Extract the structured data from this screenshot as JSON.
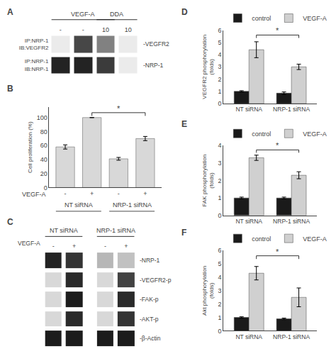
{
  "chart_data": [
    {
      "type": "blot",
      "title": "A",
      "categories": [
        "-",
        "-",
        "10",
        "10"
      ],
      "zlim": [
        0,
        1
      ],
      "series": [
        {
          "name": "-VEGFR2",
          "labels": [
            "IP:NRP-1",
            "IB:VEGFR2"
          ],
          "values": [
            0.0,
            0.7,
            0.45,
            0.0
          ]
        },
        {
          "name": "-NRP-1",
          "labels": [
            "IP:NRP-1",
            "IB:NRP-1"
          ],
          "values": [
            0.85,
            0.85,
            0.75,
            0.0
          ]
        }
      ],
      "annotations": [
        {
          "text": "VEGF-A",
          "span": [
            0,
            2
          ]
        },
        {
          "text": "DDA",
          "span": [
            2,
            3
          ]
        }
      ]
    },
    {
      "type": "bar",
      "title": "B",
      "categories": [
        "-",
        "+",
        "-",
        "+"
      ],
      "xlabel": "VEGF-A",
      "ylabel": "Cell proliferation (%)",
      "values": [
        58,
        100,
        41,
        70
      ],
      "errors": [
        3,
        0,
        2,
        3
      ],
      "color": "#d8d8d8",
      "ylim": [
        0,
        115
      ],
      "yticks": [
        0,
        20,
        40,
        60,
        80,
        100
      ],
      "annotations": [
        {
          "text": "NT siRNA",
          "span": [
            0,
            1
          ]
        },
        {
          "text": "NRP-1 siRNA",
          "span": [
            2,
            3
          ]
        },
        {
          "text": "*",
          "span": [
            1,
            3
          ],
          "y": 107
        }
      ]
    },
    {
      "type": "blot",
      "title": "C",
      "categories": [
        "-",
        "+",
        "-",
        "+"
      ],
      "xlabel": "VEGF-A",
      "zlim": [
        0,
        1
      ],
      "series": [
        {
          "name": "-NRP-1",
          "values": [
            0.85,
            0.78,
            0.22,
            0.18
          ]
        },
        {
          "name": "-VEGFR2-p",
          "values": [
            0.08,
            0.82,
            0.08,
            0.72
          ]
        },
        {
          "name": "-FAK-p",
          "values": [
            0.08,
            0.88,
            0.08,
            0.82
          ]
        },
        {
          "name": "-AKT-p",
          "values": [
            0.08,
            0.82,
            0.08,
            0.78
          ]
        },
        {
          "name": "-β-Actin",
          "values": [
            0.88,
            0.88,
            0.88,
            0.88
          ]
        }
      ],
      "annotations": [
        {
          "text": "NT siRNA",
          "span": [
            0,
            1
          ]
        },
        {
          "text": "NRP-1 siRNA",
          "span": [
            2,
            3
          ]
        }
      ]
    },
    {
      "type": "bar",
      "title": "D",
      "categories": [
        "NT siRNA",
        "NRP-1 siRNA"
      ],
      "ylabel": "VEGFR2 phosphorylation\n(folds)",
      "ylim": [
        0,
        6
      ],
      "yticks": [
        0,
        1,
        2,
        3,
        4,
        5,
        6
      ],
      "legend": "upper left",
      "series": [
        {
          "name": "control",
          "color": "#1a1a1a",
          "values": [
            1.0,
            0.85
          ],
          "errors": [
            0.05,
            0.1
          ]
        },
        {
          "name": "VEGF-A",
          "color": "#d0d0d0",
          "values": [
            4.4,
            3.0
          ],
          "errors": [
            0.65,
            0.22
          ]
        }
      ],
      "annotations": [
        {
          "text": "*",
          "series": 1,
          "span": [
            0,
            1
          ],
          "y": 5.6
        }
      ]
    },
    {
      "type": "bar",
      "title": "E",
      "categories": [
        "NT siRNA",
        "NRP-1 siRNA"
      ],
      "ylabel": "FAK phosphorylation\n(folds)",
      "ylim": [
        0,
        4
      ],
      "yticks": [
        0,
        1,
        2,
        3,
        4
      ],
      "legend": "upper left",
      "series": [
        {
          "name": "control",
          "color": "#1a1a1a",
          "values": [
            1.0,
            1.0
          ],
          "errors": [
            0.05,
            0.05
          ]
        },
        {
          "name": "VEGF-A",
          "color": "#d0d0d0",
          "values": [
            3.3,
            2.3
          ],
          "errors": [
            0.15,
            0.2
          ]
        }
      ],
      "annotations": [
        {
          "text": "*",
          "series": 1,
          "span": [
            0,
            1
          ],
          "y": 3.75
        }
      ]
    },
    {
      "type": "bar",
      "title": "F",
      "categories": [
        "NT siRNA",
        "NRP-1 siRNA"
      ],
      "ylabel": "Akt phosphorylation\n(folds)",
      "ylim": [
        0,
        6
      ],
      "yticks": [
        0,
        1,
        2,
        3,
        4,
        5,
        6
      ],
      "legend": "upper left",
      "series": [
        {
          "name": "control",
          "color": "#1a1a1a",
          "values": [
            1.0,
            0.9
          ],
          "errors": [
            0.05,
            0.05
          ]
        },
        {
          "name": "VEGF-A",
          "color": "#d0d0d0",
          "values": [
            4.3,
            2.5
          ],
          "errors": [
            0.5,
            0.7
          ]
        }
      ],
      "annotations": [
        {
          "text": "*",
          "series": 1,
          "span": [
            0,
            1
          ],
          "y": 5.6
        }
      ]
    }
  ]
}
